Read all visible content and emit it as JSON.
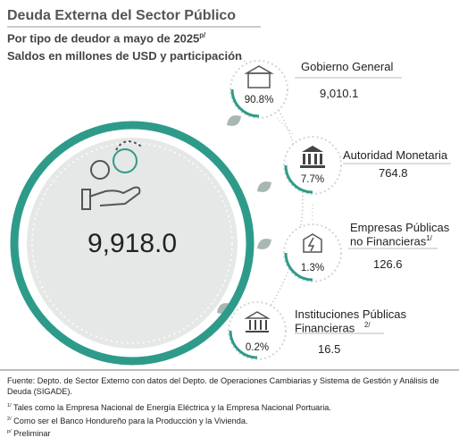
{
  "header": {
    "title": "Deuda Externa del Sector Público",
    "subtitle": "Por tipo de deudor a mayo de 2025",
    "subtitle_note": "p/",
    "subtitle2": "Saldos en millones de USD y participación"
  },
  "total": "9,918.0",
  "items": [
    {
      "label": "Gobierno General",
      "percent": "90.8%",
      "value": "9,010.1"
    },
    {
      "label": "Autoridad Monetaria",
      "percent": "7.7%",
      "value": "764.8"
    },
    {
      "label_lines": [
        "Empresas Públicas",
        "no Financieras"
      ],
      "note": "1/",
      "percent": "1.3%",
      "value": "126.6"
    },
    {
      "label_lines": [
        "Instituciones Públicas",
        "Financieras"
      ],
      "note": "2/",
      "percent": "0.2%",
      "value": "16.5"
    }
  ],
  "footer": {
    "source": "Fuente: Depto. de Sector Externo con datos del Depto. de Operaciones Cambiarias y Sistema de Gestión y Análisis de Deuda (SIGADE).",
    "notes": [
      {
        "mark": "1/",
        "text": "Tales como la Empresa Nacional de Energía Eléctrica y la Empresa Nacional Portuaria."
      },
      {
        "mark": "2/",
        "text": "Como ser el Banco Hondureño para la Producción y la Vivienda."
      },
      {
        "mark": "p/",
        "text": "Preliminar"
      }
    ]
  }
}
